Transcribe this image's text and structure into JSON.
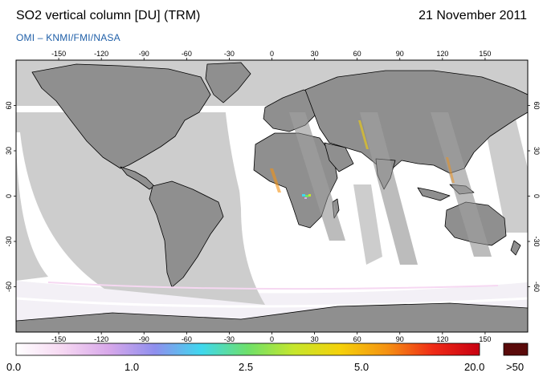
{
  "header": {
    "title": "SO2 vertical column [DU] (TRM)",
    "date": "21 November 2011",
    "credit": "OMI  –  KNMI/FMI/NASA"
  },
  "map": {
    "lon_ticks": [
      "-150",
      "-120",
      "-90",
      "-60",
      "-30",
      "0",
      "30",
      "60",
      "90",
      "120",
      "150"
    ],
    "lat_ticks": [
      "60",
      "30",
      "0",
      "-30",
      "-60"
    ],
    "colors": {
      "land": "#8f8f8f",
      "no_data": "#cdcdcd",
      "data_background": "#ffffff",
      "coastline": "#000000"
    }
  },
  "colorbar": {
    "labels": [
      "0.0",
      "1.0",
      "2.5",
      "5.0",
      "20.0",
      ">50"
    ],
    "stops": [
      "#ffffff",
      "#f6d8f2",
      "#d8a8ea",
      "#8f8fee",
      "#3fd8ee",
      "#6ee06a",
      "#c6e62c",
      "#f5d10a",
      "#f59212",
      "#ef2a16",
      "#c80012"
    ],
    "overflow_color": "#5a0a0a"
  }
}
